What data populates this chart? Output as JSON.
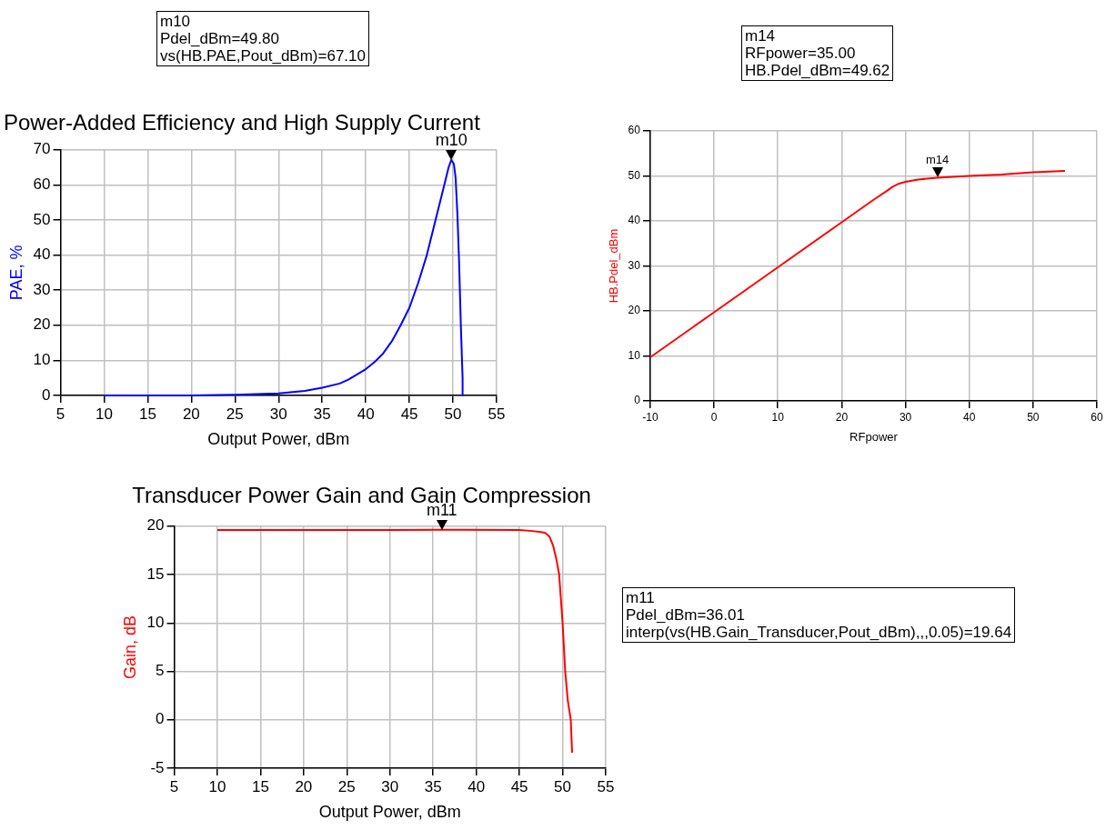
{
  "chart_data": [
    {
      "type": "line",
      "title": "Power-Added Efficiency and High Supply Current",
      "xlabel": "Output Power, dBm",
      "ylabel": "PAE, %",
      "xlim": [
        5,
        55
      ],
      "ylim": [
        0,
        70
      ],
      "xticks": [
        5,
        10,
        15,
        20,
        25,
        30,
        35,
        40,
        45,
        50,
        55
      ],
      "yticks": [
        0,
        10,
        20,
        30,
        40,
        50,
        60,
        70
      ],
      "grid": true,
      "legend": false,
      "marker": "none",
      "line_style": "solid",
      "annotations": [
        "m10\nPdel_dBm=49.80\nvs(HB.PAE,Pout_dBm)=67.10",
        {
          "text": "m10",
          "x": 49.8,
          "y": 67.1
        }
      ],
      "series": [
        {
          "color": "#0000ff",
          "x": [
            10,
            15,
            20,
            25,
            30,
            33,
            35,
            37,
            38,
            40,
            41,
            42,
            43,
            44,
            45,
            46,
            47,
            48,
            49,
            49.5,
            49.8,
            50.1,
            50.3,
            50.5,
            50.7,
            50.9,
            51.1,
            51.1
          ],
          "values": [
            0,
            0,
            0,
            0.2,
            0.6,
            1.3,
            2.2,
            3.4,
            4.5,
            7.5,
            9.5,
            12,
            15.5,
            20,
            25,
            32,
            40,
            50,
            60,
            65,
            67.1,
            66,
            62,
            52,
            38,
            20,
            5,
            0
          ]
        }
      ]
    },
    {
      "type": "line",
      "xlabel": "RFpower",
      "ylabel": "HB.Pdel_dBm",
      "xlim": [
        -10,
        60
      ],
      "ylim": [
        0,
        60
      ],
      "xticks": [
        -10,
        0,
        10,
        20,
        30,
        40,
        50,
        60
      ],
      "yticks": [
        0,
        10,
        20,
        30,
        40,
        50,
        60
      ],
      "grid": true,
      "legend": false,
      "marker": "none",
      "line_style": "solid",
      "annotations": [
        "m14\nRFpower=35.00\nHB.Pdel_dBm=49.62",
        {
          "text": "m14",
          "x": 35,
          "y": 49.62
        }
      ],
      "series": [
        {
          "color": "#ff0000",
          "x": [
            -10,
            0,
            10,
            20,
            25,
            27,
            28,
            29,
            30,
            32,
            35,
            40,
            45,
            50,
            55
          ],
          "values": [
            9.7,
            19.7,
            29.7,
            39.7,
            44.7,
            46.6,
            47.6,
            48.3,
            48.7,
            49.2,
            49.62,
            50,
            50.3,
            50.8,
            51.1
          ]
        }
      ]
    },
    {
      "type": "line",
      "title": "Transducer Power Gain and Gain Compression",
      "xlabel": "Output Power, dBm",
      "ylabel": "Gain, dB",
      "xlim": [
        5,
        55
      ],
      "ylim": [
        -5,
        20
      ],
      "xticks": [
        5,
        10,
        15,
        20,
        25,
        30,
        35,
        40,
        45,
        50,
        55
      ],
      "yticks": [
        -5,
        0,
        5,
        10,
        15,
        20
      ],
      "grid": true,
      "legend": false,
      "marker": "none",
      "line_style": "solid",
      "annotations": [
        "m11\nPdel_dBm=36.01\ninterp(vs(HB.Gain_Transducer,Pout_dBm),,,0.05)=19.64",
        {
          "text": "m11",
          "x": 36.01,
          "y": 19.64
        }
      ],
      "series": [
        {
          "color": "#ff0000",
          "x": [
            10,
            20,
            30,
            36.01,
            45,
            46.5,
            47.5,
            48,
            48.5,
            48.9,
            49.3,
            49.6,
            50,
            50.3,
            50.6,
            50.95,
            51.1
          ],
          "values": [
            19.6,
            19.6,
            19.6,
            19.64,
            19.6,
            19.5,
            19.4,
            19.3,
            18.9,
            18,
            16.5,
            15,
            10,
            5,
            2,
            0,
            -3.4
          ]
        }
      ]
    }
  ]
}
